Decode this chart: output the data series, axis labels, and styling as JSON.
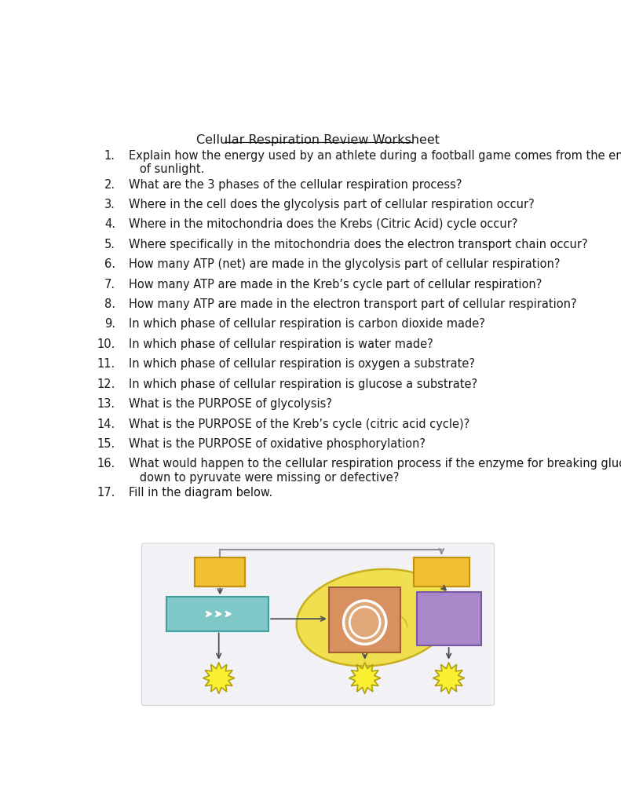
{
  "title": "Cellular Respiration Review Worksheet",
  "questions": [
    {
      "num": "1.",
      "text": "Explain how the energy used by an athlete during a football game comes from the energy\n   of sunlight."
    },
    {
      "num": "2.",
      "text": "What are the 3 phases of the cellular respiration process?"
    },
    {
      "num": "3.",
      "text": "Where in the cell does the glycolysis part of cellular respiration occur?"
    },
    {
      "num": "4.",
      "text": "Where in the mitochondria does the Krebs (Citric Acid) cycle occur?"
    },
    {
      "num": "5.",
      "text": "Where specifically in the mitochondria does the electron transport chain occur?"
    },
    {
      "num": "6.",
      "text": "How many ATP (net) are made in the glycolysis part of cellular respiration?"
    },
    {
      "num": "7.",
      "text": "How many ATP are made in the Kreb’s cycle part of cellular respiration?"
    },
    {
      "num": "8.",
      "text": "How many ATP are made in the electron transport part of cellular respiration?"
    },
    {
      "num": "9.",
      "text": "In which phase of cellular respiration is carbon dioxide made?"
    },
    {
      "num": "10.",
      "text": "In which phase of cellular respiration is water made?"
    },
    {
      "num": "11.",
      "text": "In which phase of cellular respiration is oxygen a substrate?"
    },
    {
      "num": "12.",
      "text": "In which phase of cellular respiration is glucose a substrate?"
    },
    {
      "num": "13.",
      "text": "What is the PURPOSE of glycolysis?"
    },
    {
      "num": "14.",
      "text": "What is the PURPOSE of the Kreb’s cycle (citric acid cycle)?"
    },
    {
      "num": "15.",
      "text": "What is the PURPOSE of oxidative phosphorylation?"
    },
    {
      "num": "16.",
      "text": "What would happen to the cellular respiration process if the enzyme for breaking glucose\n   down to pyruvate were missing or defective?"
    },
    {
      "num": "17.",
      "text": "Fill in the diagram below."
    }
  ],
  "bg_color": "#ffffff",
  "text_color": "#1a1a1a",
  "font_size": 10.5,
  "title_font_size": 11.5,
  "diagram": {
    "mitochondria_color": "#f0e050",
    "mitochondria_outline": "#c8b020",
    "yellow_box_color": "#f0c030",
    "yellow_box_outline": "#c09010",
    "cyan_box_color": "#80c8c8",
    "cyan_box_outline": "#40a0a0",
    "krebs_box_color": "#d89060",
    "krebs_box_outline": "#a06030",
    "krebs_oval_fill": "#e0a878",
    "purple_box_color": "#a888c8",
    "purple_box_outline": "#7858a0",
    "arrow_color": "#505050",
    "connector_color": "#909090",
    "starburst_color": "#f8f030",
    "starburst_outline": "#b0a010"
  }
}
